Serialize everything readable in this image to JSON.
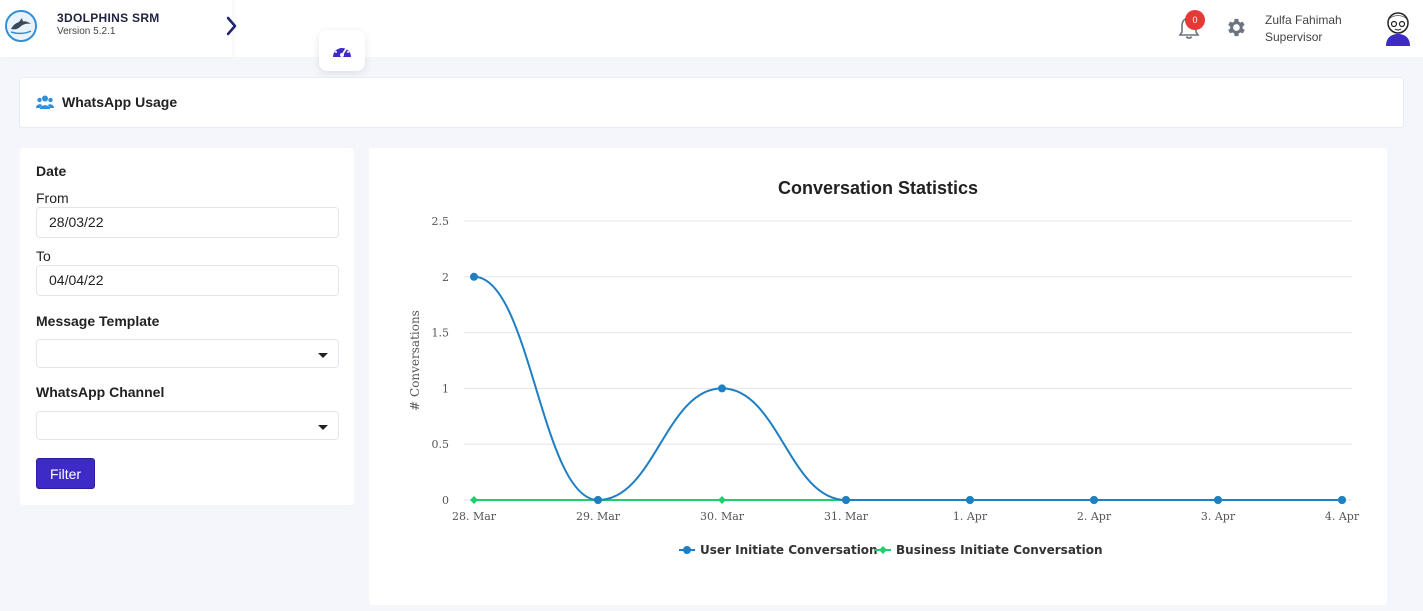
{
  "app": {
    "name": "3DOLPHINS SRM",
    "version": "Version 5.2.1"
  },
  "header": {
    "notification_count": "0",
    "user_name": "Zulfa Fahimah",
    "user_role": "Supervisor"
  },
  "page": {
    "title": "WhatsApp Usage",
    "icon": "users-icon"
  },
  "filters": {
    "date_label": "Date",
    "from_label": "From",
    "from_value": "28/03/22",
    "to_label": "To",
    "to_value": "04/04/22",
    "template_label": "Message Template",
    "template_value": "",
    "channel_label": "WhatsApp Channel",
    "channel_value": "",
    "filter_button": "Filter"
  },
  "colors": {
    "accent": "#3e2bc7",
    "user_series": "#1f7fc4",
    "business_series": "#1fcf6e",
    "badge": "#e53935"
  },
  "chart_data": {
    "type": "line",
    "title": "Conversation Statistics",
    "xlabel": "",
    "ylabel": "# Conversations",
    "ylim": [
      0,
      2.5
    ],
    "yticks": [
      "0",
      "0.5",
      "1",
      "1.5",
      "2",
      "2.5"
    ],
    "categories": [
      "28. Mar",
      "29. Mar",
      "30. Mar",
      "31. Mar",
      "1. Apr",
      "2. Apr",
      "3. Apr",
      "4. Apr"
    ],
    "series": [
      {
        "name": "User Initiate Conversation",
        "color": "#1f7fc4",
        "values": [
          2,
          0,
          1,
          0,
          0,
          0,
          0,
          0
        ]
      },
      {
        "name": "Business Initiate Conversation",
        "color": "#1fcf6e",
        "values": [
          0,
          0,
          0,
          0,
          0,
          0,
          0,
          0
        ]
      }
    ],
    "legend": "bottom-center",
    "grid": true
  }
}
